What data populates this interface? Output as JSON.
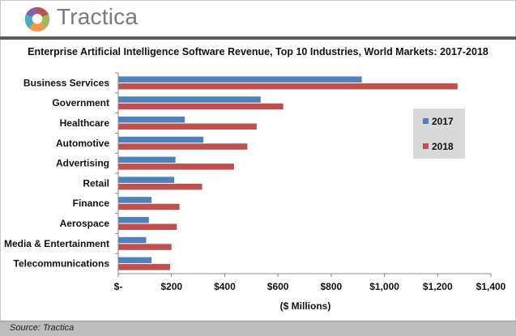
{
  "brand": {
    "name": "Tractica"
  },
  "colors": {
    "s2017": "#4f81bd",
    "s2018": "#c0504d",
    "legend_bg": "#d9d9d9",
    "footer_bg": "#bdbdbd"
  },
  "chart_data": {
    "type": "bar",
    "orientation": "horizontal",
    "title": "Enterprise Artificial Intelligence Software Revenue, Top 10 Industries, World Markets: 2017-2018",
    "xlabel": "($ Millions)",
    "ylabel": "",
    "xlim": [
      0,
      1400
    ],
    "grid": false,
    "legend_position": "right",
    "categories": [
      "Business Services",
      "Government",
      "Healthcare",
      "Automotive",
      "Advertising",
      "Retail",
      "Finance",
      "Aerospace",
      "Media & Entertainment",
      "Telecommunications"
    ],
    "series": [
      {
        "name": "2017",
        "values": [
          915,
          535,
          250,
          320,
          215,
          210,
          125,
          115,
          105,
          125
        ]
      },
      {
        "name": "2018",
        "values": [
          1275,
          620,
          520,
          485,
          435,
          315,
          230,
          220,
          200,
          195
        ]
      }
    ],
    "tick_labels": [
      "$-",
      "$200",
      "$400",
      "$600",
      "$800",
      "$1,000",
      "$1,200",
      "$1,400"
    ]
  },
  "source": "Source: Tractica"
}
